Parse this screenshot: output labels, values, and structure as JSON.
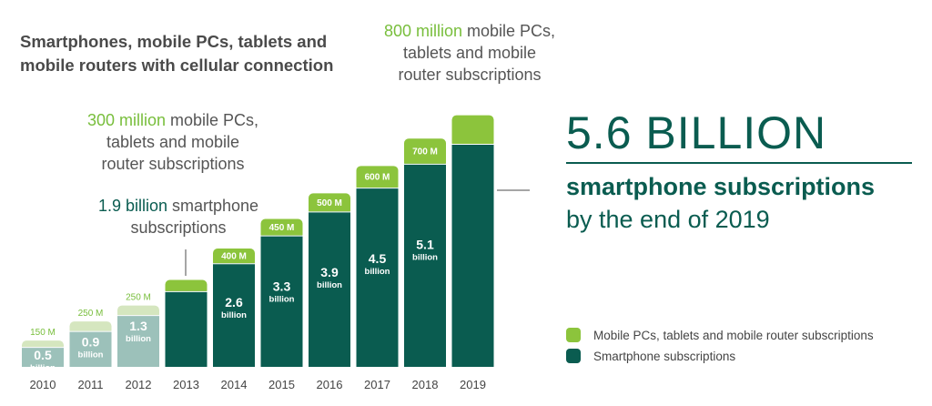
{
  "headline": "Smartphones, mobile PCs, tablets and mobile routers with cellular connection",
  "annotations": {
    "a2019_hl": "800 million",
    "a2019_rest1": " mobile PCs,",
    "a2019_rest2": "tablets and mobile",
    "a2019_rest3": "router subscriptions",
    "a300_hl": "300 million",
    "a300_rest1": " mobile PCs,",
    "a300_rest2": "tablets and mobile",
    "a300_rest3": "router subscriptions",
    "a19_hl": "1.9 billion",
    "a19_rest1": " smartphone",
    "a19_rest2": "subscriptions"
  },
  "callout": {
    "big": "5.6 BILLION",
    "sub1": "smartphone subscriptions",
    "sub2": "by the end of 2019"
  },
  "legend": {
    "mobile": "Mobile PCs, tablets and mobile router subscriptions",
    "smart": "Smartphone subscriptions"
  },
  "colors": {
    "mobile": "#8cc43c",
    "smart": "#0a5c50",
    "mobile_light": "#d5e6bf",
    "smart_light": "#9cc1ba"
  },
  "chart_data": {
    "type": "bar",
    "stacked": true,
    "categories": [
      "2010",
      "2011",
      "2012",
      "2013",
      "2014",
      "2015",
      "2016",
      "2017",
      "2018",
      "2019"
    ],
    "series": [
      {
        "name": "Smartphone subscriptions",
        "values": [
          0.5,
          0.9,
          1.3,
          1.9,
          2.6,
          3.3,
          3.9,
          4.5,
          5.1,
          5.6
        ],
        "unit": "billion",
        "labels": [
          "0.5",
          "0.9",
          "1.3",
          "",
          "2.6",
          "3.3",
          "3.9",
          "4.5",
          "5.1",
          ""
        ]
      },
      {
        "name": "Mobile PCs, tablets and mobile router subscriptions",
        "values": [
          150,
          250,
          250,
          300,
          400,
          450,
          500,
          600,
          700,
          800
        ],
        "unit": "M",
        "labels": [
          "150 M",
          "250 M",
          "250 M",
          "",
          "400 M",
          "450 M",
          "500 M",
          "600 M",
          "700 M",
          ""
        ]
      }
    ],
    "sub_label": "billion",
    "highlight_from_index": 3
  }
}
